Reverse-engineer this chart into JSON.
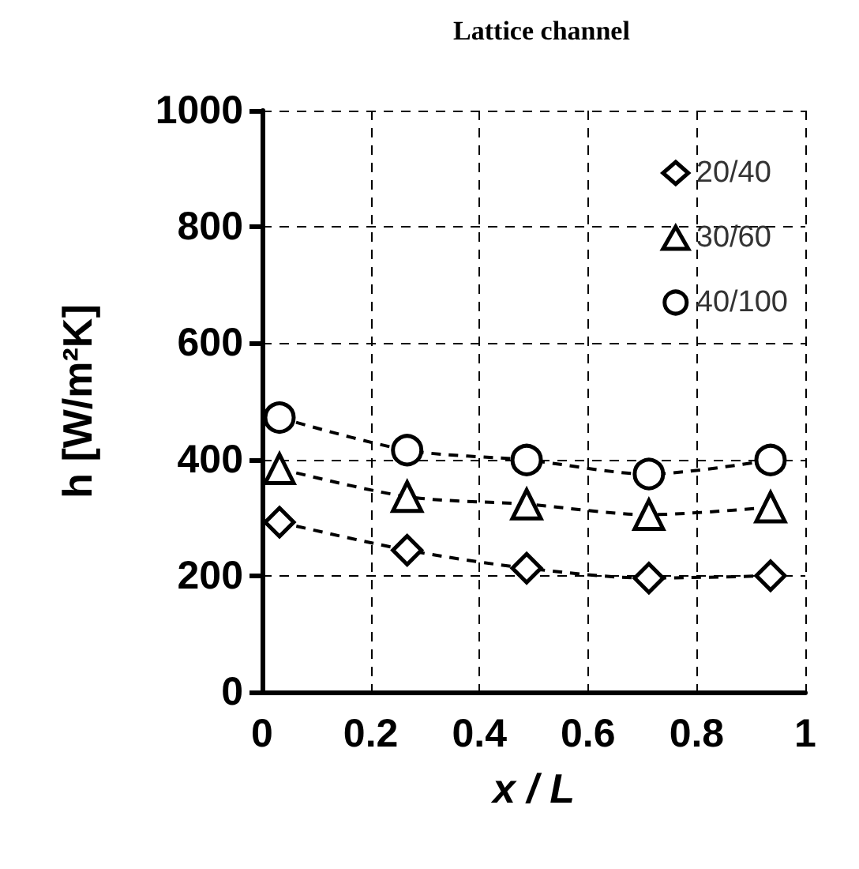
{
  "chart_data": {
    "type": "line",
    "title": "Lattice channel",
    "xlabel": "x / L",
    "ylabel": "h [W/m²K]",
    "xlim": [
      0,
      1
    ],
    "xticks": [
      0,
      0.2,
      0.4,
      0.6,
      0.8,
      1
    ],
    "ylim": [
      0,
      1000
    ],
    "yticks": [
      0,
      200,
      400,
      600,
      800,
      1000
    ],
    "grid": true,
    "legend": "top right",
    "line_style": "dashed",
    "series": [
      {
        "name": "20/40",
        "color": "#000000",
        "marker": "diamond",
        "x": [
          0.032,
          0.267,
          0.487,
          0.712,
          0.936
        ],
        "values": [
          292,
          244,
          213,
          196,
          200
        ]
      },
      {
        "name": "30/60",
        "color": "#000000",
        "marker": "triangle",
        "x": [
          0.032,
          0.267,
          0.487,
          0.712,
          0.936
        ],
        "values": [
          384,
          336,
          323,
          305,
          318
        ]
      },
      {
        "name": "40/100",
        "color": "#000000",
        "marker": "circle",
        "x": [
          0.032,
          0.267,
          0.487,
          0.712,
          0.936
        ],
        "values": [
          472,
          416,
          399,
          375,
          399
        ]
      }
    ]
  }
}
